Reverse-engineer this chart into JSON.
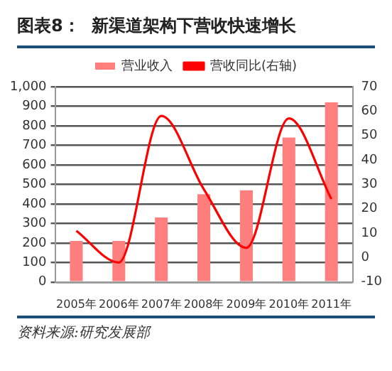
{
  "chart_data": {
    "type": "bar",
    "title": "图表8：  新渠道架构下营收快速增长",
    "categories": [
      "2005年",
      "2006年",
      "2007年",
      "2008年",
      "2009年",
      "2010年",
      "2011年"
    ],
    "series": [
      {
        "name": "营业收入",
        "color": "#ff7f7f",
        "values": [
          210,
          210,
          330,
          450,
          470,
          740,
          920
        ]
      },
      {
        "name": "营收同比(右轴)",
        "type": "line",
        "axis": "y2",
        "color": "#ff0000",
        "values": [
          11,
          -2,
          58,
          28,
          4,
          57,
          24
        ]
      }
    ],
    "ylim": [
      0,
      1000
    ],
    "yticks": [
      0,
      {
        "value": 100,
        "label": "100"
      },
      200,
      300,
      400,
      500,
      600,
      700,
      800,
      900,
      {
        "value": 1000,
        "label": "1,000"
      }
    ],
    "y2lim": [
      -10,
      70
    ],
    "y2ticks": [
      -10,
      0,
      10,
      20,
      30,
      40,
      50,
      60,
      70
    ],
    "grid": "y",
    "legend": "top",
    "marker": "none",
    "annotations": [
      "资料来源:研究发展部"
    ]
  }
}
